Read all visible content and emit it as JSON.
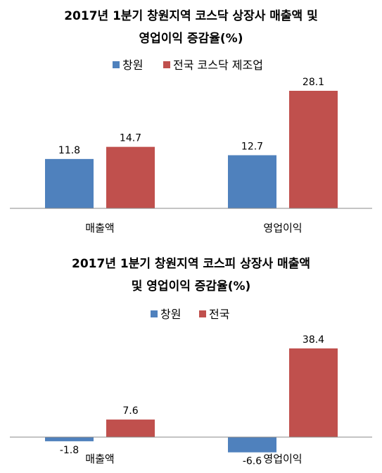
{
  "chart_data": [
    {
      "type": "bar",
      "title_lines": [
        "2017년 1분기 창원지역 코스닥 상장사 매출액 및",
        "영업이익 증감율(%)"
      ],
      "categories": [
        "매출액",
        "영업이익"
      ],
      "series": [
        {
          "name": "창원",
          "color": "#4f81bd",
          "values": [
            11.8,
            12.7
          ]
        },
        {
          "name": "전국 코스닥 제조업",
          "color": "#c0504d",
          "values": [
            14.7,
            28.1
          ]
        }
      ],
      "legend_position": "top",
      "grid": false
    },
    {
      "type": "bar",
      "title_lines": [
        "2017년 1분기 창원지역 코스피 상장사 매출액",
        "및 영업이익 증감율(%)"
      ],
      "categories": [
        "매출액",
        "영업이익"
      ],
      "series": [
        {
          "name": "창원",
          "color": "#4f81bd",
          "values": [
            -1.8,
            -6.6
          ]
        },
        {
          "name": "전국",
          "color": "#c0504d",
          "values": [
            7.6,
            38.4
          ]
        }
      ],
      "legend_position": "top",
      "grid": false
    }
  ]
}
